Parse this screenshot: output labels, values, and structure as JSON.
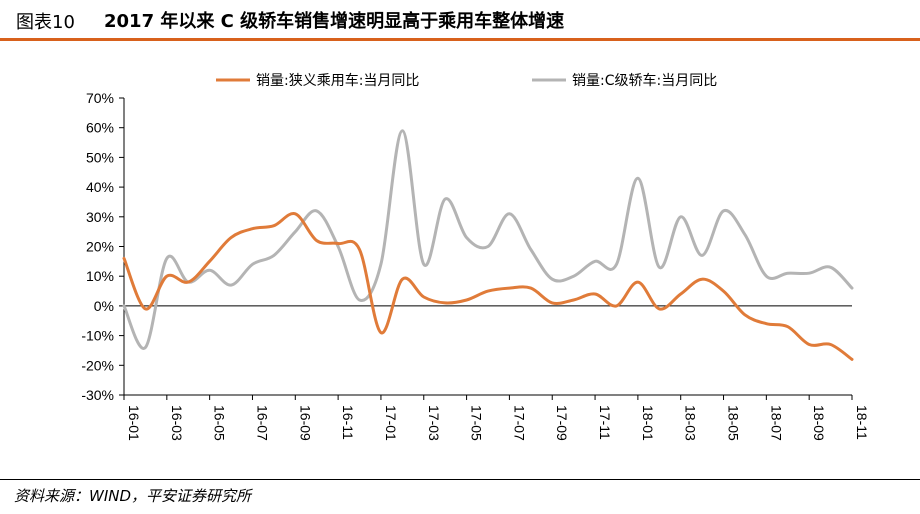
{
  "figure": {
    "label": "图表10",
    "title": "2017 年以来 C 级轿车销售增速明显高于乘用车整体增速",
    "source": "资料来源：WIND，平安证券研究所"
  },
  "chart_data": {
    "type": "line",
    "x": [
      "16-01",
      "16-02",
      "16-03",
      "16-04",
      "16-05",
      "16-06",
      "16-07",
      "16-08",
      "16-09",
      "16-10",
      "16-11",
      "16-12",
      "17-01",
      "17-02",
      "17-03",
      "17-04",
      "17-05",
      "17-06",
      "17-07",
      "17-08",
      "17-09",
      "17-10",
      "17-11",
      "17-12",
      "18-01",
      "18-02",
      "18-03",
      "18-04",
      "18-05",
      "18-06",
      "18-07",
      "18-08",
      "18-09",
      "18-10",
      "18-11"
    ],
    "x_tick_labels": [
      "16-01",
      "16-03",
      "16-05",
      "16-07",
      "16-09",
      "16-11",
      "17-01",
      "17-03",
      "17-05",
      "17-07",
      "17-09",
      "17-11",
      "18-01",
      "18-03",
      "18-05",
      "18-07",
      "18-09",
      "18-11"
    ],
    "y_tick_labels": [
      "70%",
      "60%",
      "50%",
      "40%",
      "30%",
      "20%",
      "10%",
      "0%",
      "-10%",
      "-20%",
      "-30%"
    ],
    "ylim": [
      -30,
      70
    ],
    "y_unit": "%",
    "grid": false,
    "legend_position": "top",
    "series": [
      {
        "name": "销量:狭义乘用车:当月同比",
        "color": "#e07b39",
        "values": [
          16,
          -1,
          10,
          8,
          15,
          23,
          26,
          27,
          31,
          22,
          21,
          19,
          -9,
          9,
          3,
          1,
          2,
          5,
          6,
          6,
          1,
          2,
          4,
          0,
          8,
          -1,
          4,
          9,
          5,
          -3,
          -6,
          -7,
          -13,
          -13,
          -18
        ]
      },
      {
        "name": "销量:C级轿车:当月同比",
        "color": "#b4b4b4",
        "values": [
          0,
          -14,
          16,
          8,
          12,
          7,
          14,
          17,
          25,
          32,
          20,
          2,
          14,
          59,
          14,
          36,
          23,
          20,
          31,
          19,
          9,
          10,
          15,
          14,
          43,
          13,
          30,
          17,
          32,
          24,
          10,
          11,
          11,
          13,
          6
        ]
      }
    ]
  }
}
